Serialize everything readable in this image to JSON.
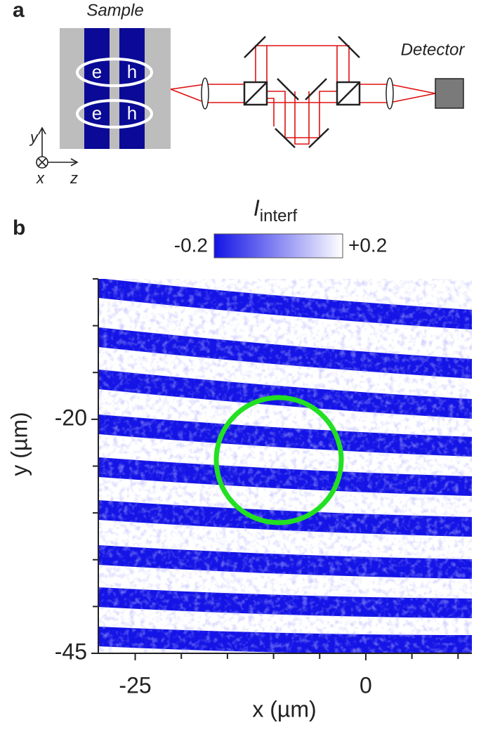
{
  "panel_a": {
    "label": "a",
    "sample_label": "Sample",
    "pairs": [
      {
        "e": "e",
        "h": "h"
      },
      {
        "e": "e",
        "h": "h"
      }
    ],
    "axis_y": "y",
    "axis_x": "x",
    "axis_z": "z",
    "detector_label": "Detector"
  },
  "chart_data": {
    "type": "heatmap",
    "panel_label": "b",
    "colorbar": {
      "symbol": "I",
      "subscript": "interf",
      "lim": [
        -0.2,
        {
          "value": 0.2,
          "label": "+0.2"
        }
      ],
      "colors": [
        "#1414e6",
        "#ffffff"
      ]
    },
    "x_label": "x (µm)",
    "y_label": "y (µm)",
    "xlim": [
      -29,
      11.5
    ],
    "ylim": [
      -45,
      -5
    ],
    "xticks": [
      -25,
      0
    ],
    "yticks": [
      -20,
      -45
    ],
    "x_minor_ticks": [
      -20,
      -15,
      -10,
      -5,
      5,
      10
    ],
    "y_minor_ticks": [
      -5,
      -10,
      -15,
      -25,
      -30,
      -35,
      -40
    ]
  }
}
